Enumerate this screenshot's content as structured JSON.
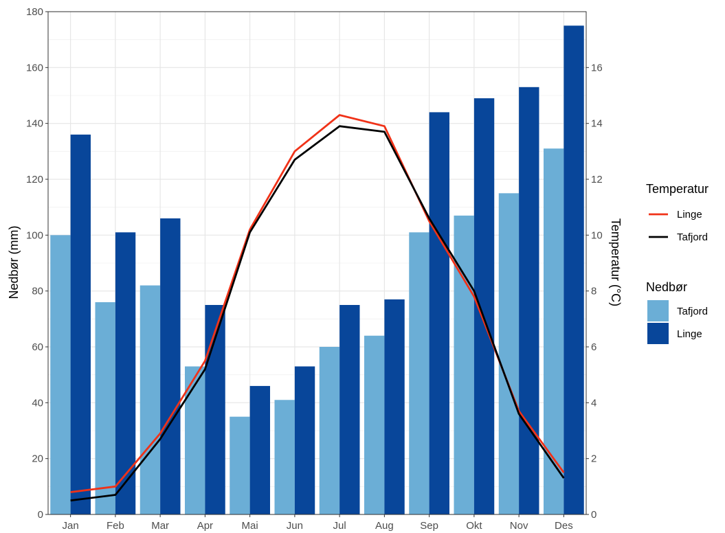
{
  "chart_data": {
    "type": "bar",
    "categories": [
      "Jan",
      "Feb",
      "Mar",
      "Apr",
      "Mai",
      "Jun",
      "Jul",
      "Aug",
      "Sep",
      "Okt",
      "Nov",
      "Des"
    ],
    "ylabel": "Nedbør (mm)",
    "ylim": [
      0,
      180
    ],
    "y_ticks": [
      0,
      20,
      40,
      60,
      80,
      100,
      120,
      140,
      160,
      180
    ],
    "y2label": "Temperatur (°C)",
    "y2lim": [
      0,
      18
    ],
    "y2_ticks": [
      0,
      2,
      4,
      6,
      8,
      10,
      12,
      14,
      16
    ],
    "grid": true,
    "legend_position": "right",
    "bar_legend_title": "Nedbør",
    "line_legend_title": "Temperatur",
    "bar_series": [
      {
        "name": "Tafjord",
        "color": "#6baed6",
        "values": [
          100,
          76,
          82,
          53,
          35,
          41,
          60,
          64,
          101,
          107,
          115,
          131
        ]
      },
      {
        "name": "Linge",
        "color": "#08469a",
        "values": [
          136,
          101,
          106,
          75,
          46,
          53,
          75,
          77,
          144,
          149,
          153,
          175
        ]
      }
    ],
    "line_series": [
      {
        "name": "Linge",
        "color": "#f03218",
        "values": [
          0.8,
          1.0,
          2.9,
          5.5,
          10.2,
          13.0,
          14.3,
          13.9,
          10.5,
          7.8,
          3.7,
          1.5
        ]
      },
      {
        "name": "Tafjord",
        "color": "#000000",
        "values": [
          0.5,
          0.7,
          2.7,
          5.2,
          10.1,
          12.7,
          13.9,
          13.7,
          10.6,
          8.0,
          3.6,
          1.3
        ]
      }
    ]
  }
}
